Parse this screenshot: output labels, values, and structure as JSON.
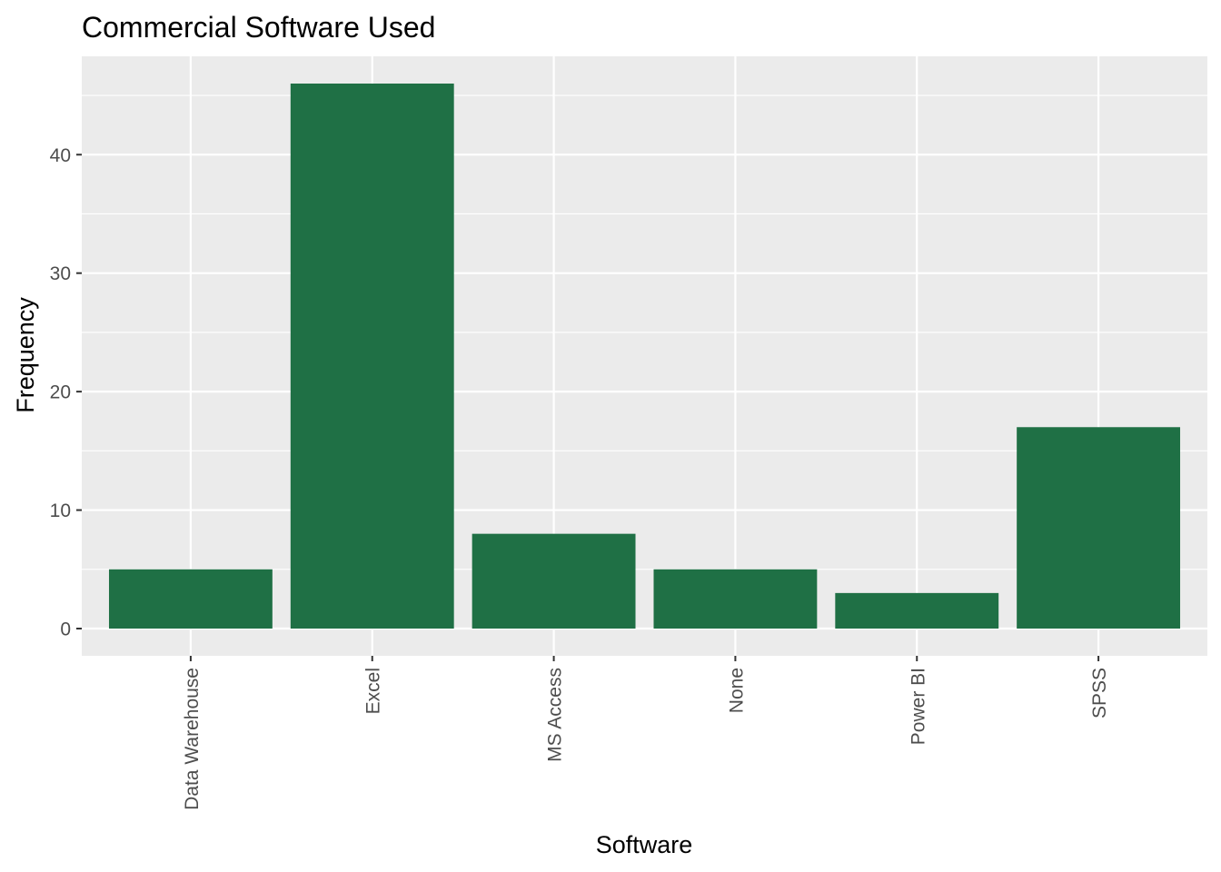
{
  "chart_data": {
    "type": "bar",
    "title": "Commercial Software Used",
    "xlabel": "Software",
    "ylabel": "Frequency",
    "categories": [
      "Data Warehouse",
      "Excel",
      "MS Access",
      "None",
      "Power BI",
      "SPSS"
    ],
    "values": [
      5,
      46,
      8,
      5,
      3,
      17
    ],
    "ylim": [
      -2.3,
      48.3
    ],
    "y_ticks": [
      0,
      10,
      20,
      30,
      40
    ],
    "y_tick_labels": [
      "0",
      "10",
      "20",
      "30",
      "40"
    ],
    "grid": true,
    "legend": "none",
    "x_tick_rotation": "vertical",
    "bar_color": "#1f7045",
    "panel_background": "#ebebeb",
    "grid_color": "#ffffff"
  }
}
